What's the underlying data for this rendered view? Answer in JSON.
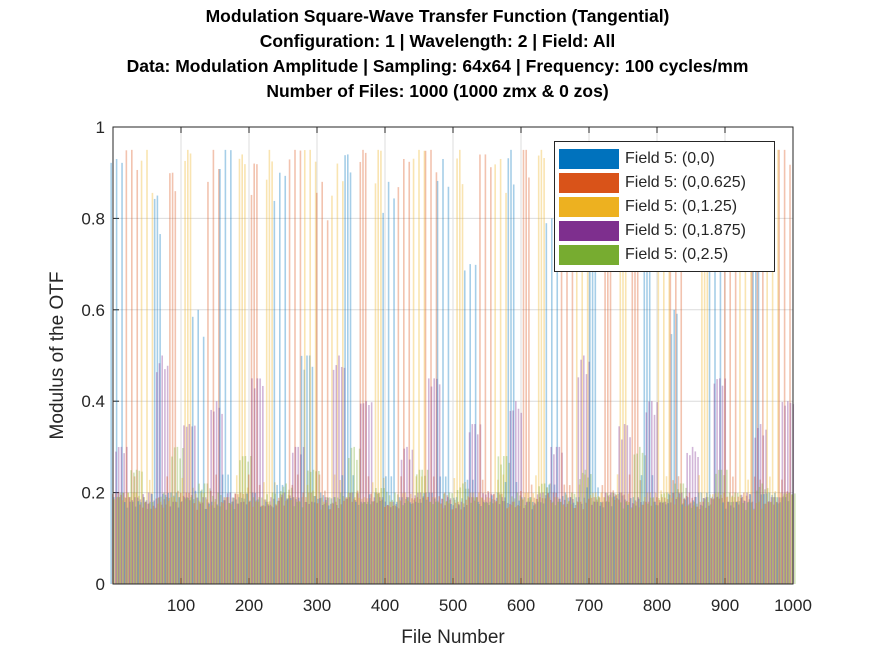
{
  "chart_data": {
    "type": "bar",
    "title": [
      "Modulation Square-Wave Transfer Function (Tangential)",
      "Configuration: 1 | Wavelength: 2 | Field: All",
      "Data: Modulation Amplitude | Sampling: 64x64 | Frequency: 100 cycles/mm",
      "Number of Files: 1000 (1000 zmx &  0 zos)"
    ],
    "xlabel": "File Number",
    "ylabel": "Modulus of the OTF",
    "xlim": [
      0,
      1000
    ],
    "ylim": [
      0,
      1
    ],
    "xticks": [
      "100",
      "200",
      "300",
      "400",
      "500",
      "600",
      "700",
      "800",
      "900",
      "1000"
    ],
    "yticks": [
      "0",
      "0.2",
      "0.4",
      "0.6",
      "0.8",
      "1"
    ],
    "grid": true,
    "legend_position": "top-right",
    "x_note": "sampled every 20 files (approximate)",
    "x": [
      10,
      30,
      50,
      70,
      90,
      110,
      130,
      150,
      170,
      190,
      210,
      230,
      250,
      270,
      290,
      310,
      330,
      350,
      370,
      390,
      410,
      430,
      450,
      470,
      490,
      510,
      530,
      550,
      570,
      590,
      610,
      630,
      650,
      670,
      690,
      710,
      730,
      750,
      770,
      790,
      810,
      830,
      850,
      870,
      890,
      910,
      930,
      950,
      970,
      990
    ],
    "series": [
      {
        "name": "Field 5: (0,0)",
        "color": "#0072BD",
        "values": [
          0.93,
          0.18,
          0.19,
          0.85,
          0.2,
          0.19,
          0.6,
          0.18,
          0.95,
          0.19,
          0.2,
          0.18,
          0.9,
          0.19,
          0.5,
          0.2,
          0.19,
          0.94,
          0.18,
          0.2,
          0.88,
          0.19,
          0.18,
          0.2,
          0.93,
          0.19,
          0.7,
          0.18,
          0.2,
          0.95,
          0.19,
          0.18,
          0.8,
          0.2,
          0.19,
          0.92,
          0.18,
          0.2,
          0.19,
          0.95,
          0.18,
          0.6,
          0.19,
          0.2,
          0.94,
          0.18,
          0.19,
          0.85,
          0.2,
          0.19
        ]
      },
      {
        "name": "Field 5: (0,0.625)",
        "color": "#D95319",
        "values": [
          0.2,
          0.95,
          0.18,
          0.19,
          0.9,
          0.2,
          0.18,
          0.95,
          0.19,
          0.2,
          0.92,
          0.18,
          0.19,
          0.95,
          0.2,
          0.88,
          0.18,
          0.19,
          0.95,
          0.2,
          0.18,
          0.93,
          0.19,
          0.95,
          0.2,
          0.18,
          0.19,
          0.94,
          0.2,
          0.18,
          0.95,
          0.19,
          0.2,
          0.9,
          0.18,
          0.19,
          0.95,
          0.2,
          0.93,
          0.18,
          0.19,
          0.95,
          0.2,
          0.18,
          0.19,
          0.95,
          0.2,
          0.92,
          0.18,
          0.95
        ]
      },
      {
        "name": "Field 5: (0,1.25)",
        "color": "#EDB120",
        "values": [
          0.19,
          0.2,
          0.95,
          0.18,
          0.19,
          0.95,
          0.2,
          0.18,
          0.19,
          0.94,
          0.18,
          0.95,
          0.2,
          0.19,
          0.95,
          0.18,
          0.92,
          0.2,
          0.19,
          0.95,
          0.18,
          0.2,
          0.95,
          0.19,
          0.18,
          0.95,
          0.2,
          0.19,
          0.93,
          0.18,
          0.2,
          0.95,
          0.19,
          0.18,
          0.95,
          0.2,
          0.19,
          0.94,
          0.18,
          0.2,
          0.95,
          0.19,
          0.18,
          0.95,
          0.2,
          0.19,
          0.93,
          0.18,
          0.95,
          0.2
        ]
      },
      {
        "name": "Field 5: (0,1.875)",
        "color": "#7E2F8E",
        "values": [
          0.3,
          0.19,
          0.2,
          0.5,
          0.18,
          0.35,
          0.19,
          0.4,
          0.2,
          0.18,
          0.45,
          0.19,
          0.2,
          0.3,
          0.18,
          0.19,
          0.5,
          0.2,
          0.4,
          0.19,
          0.18,
          0.3,
          0.2,
          0.45,
          0.19,
          0.18,
          0.35,
          0.2,
          0.19,
          0.4,
          0.18,
          0.2,
          0.3,
          0.19,
          0.5,
          0.18,
          0.2,
          0.35,
          0.19,
          0.4,
          0.18,
          0.2,
          0.3,
          0.19,
          0.45,
          0.18,
          0.2,
          0.35,
          0.19,
          0.4
        ]
      },
      {
        "name": "Field 5: (0,2.5)",
        "color": "#77AC30",
        "values": [
          0.2,
          0.25,
          0.18,
          0.2,
          0.3,
          0.19,
          0.22,
          0.2,
          0.18,
          0.28,
          0.19,
          0.2,
          0.22,
          0.18,
          0.25,
          0.19,
          0.2,
          0.3,
          0.18,
          0.21,
          0.2,
          0.19,
          0.25,
          0.18,
          0.2,
          0.22,
          0.19,
          0.18,
          0.28,
          0.2,
          0.19,
          0.22,
          0.18,
          0.2,
          0.25,
          0.19,
          0.2,
          0.18,
          0.3,
          0.19,
          0.2,
          0.22,
          0.18,
          0.19,
          0.25,
          0.2,
          0.18,
          0.22,
          0.19,
          0.2
        ]
      }
    ]
  }
}
